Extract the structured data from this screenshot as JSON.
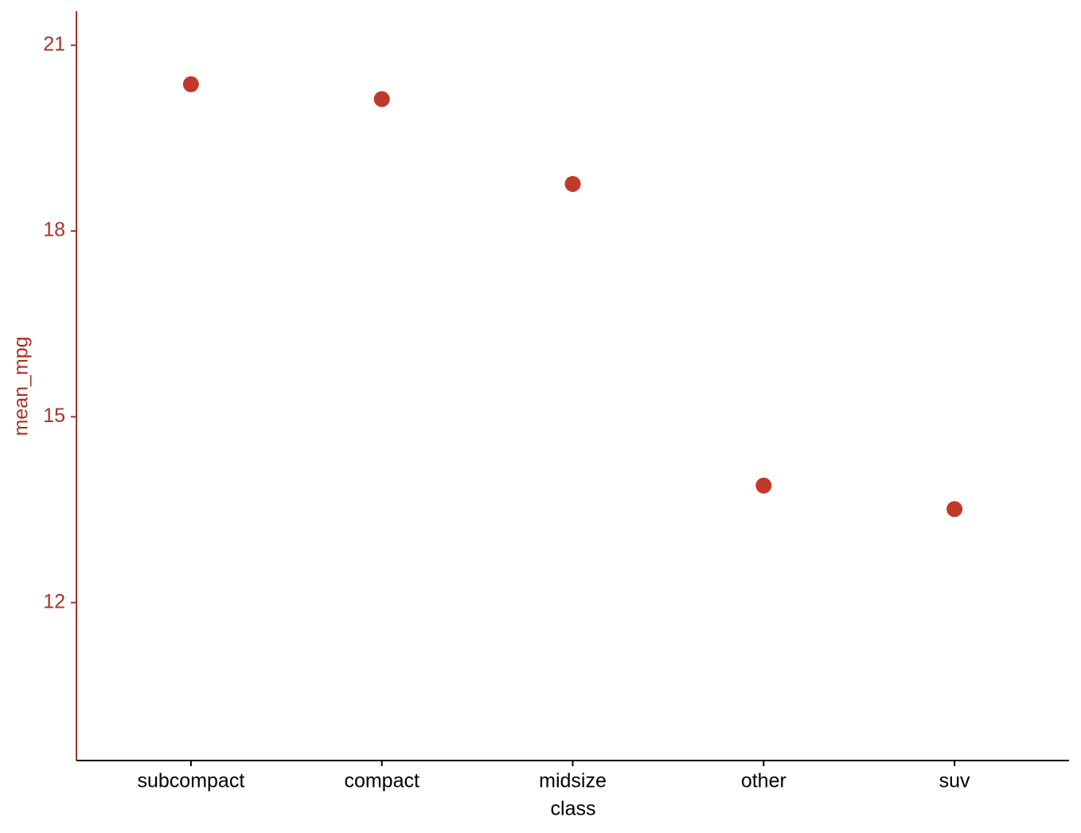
{
  "chart_data": {
    "type": "scatter",
    "x_label": "class",
    "y_label": "mean_mpg",
    "categories": [
      "subcompact",
      "compact",
      "midsize",
      "other",
      "suv"
    ],
    "values": [
      20.37,
      20.13,
      18.76,
      13.89,
      13.51
    ],
    "color": "#c0392b",
    "y_axis_color": "#a93226",
    "ylim": [
      9.45,
      21.55
    ],
    "yticks": [
      12,
      15,
      18,
      21
    ],
    "grid": false
  }
}
